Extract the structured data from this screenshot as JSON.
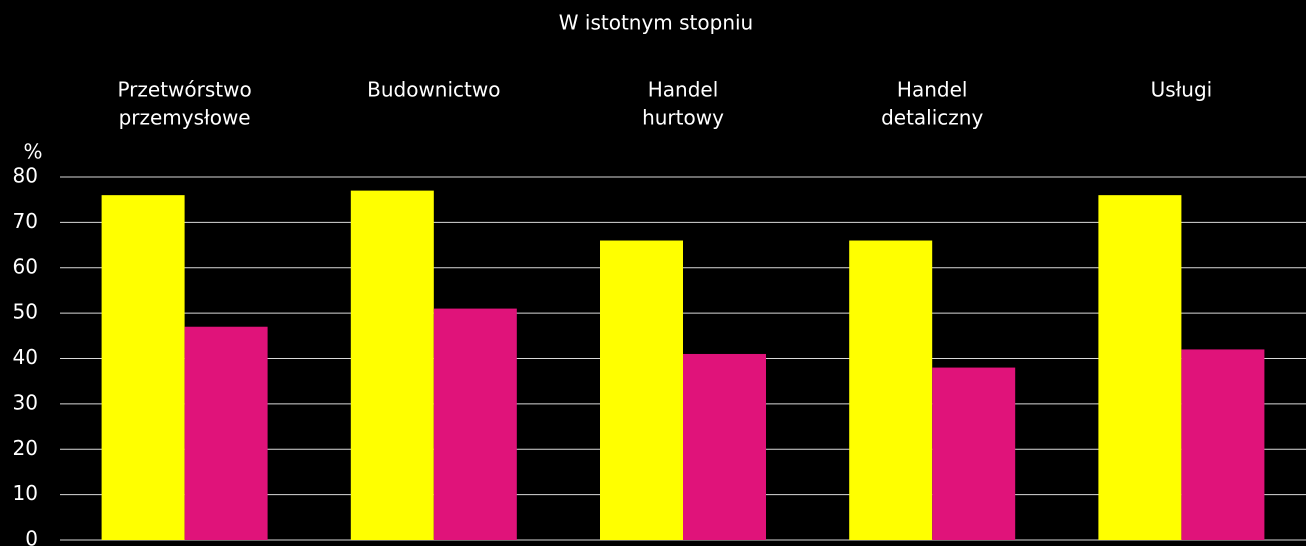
{
  "chart_data": {
    "type": "bar",
    "title": "W istotnym stopniu",
    "y_label": "%",
    "categories": [
      [
        "Przetwórstwo",
        "przemysłowe"
      ],
      [
        "Budownictwo"
      ],
      [
        "Handel",
        "hurtowy"
      ],
      [
        "Handel",
        "detaliczny"
      ],
      [
        "Usługi"
      ]
    ],
    "series": [
      {
        "color": "#ffff00",
        "values": [
          76,
          77,
          66,
          66,
          76
        ]
      },
      {
        "color": "#e0137a",
        "values": [
          47,
          51,
          41,
          38,
          42
        ]
      }
    ],
    "ylim": [
      0,
      80
    ],
    "yticks": [
      0,
      10,
      20,
      30,
      40,
      50,
      60,
      70,
      80
    ],
    "grid": true
  }
}
